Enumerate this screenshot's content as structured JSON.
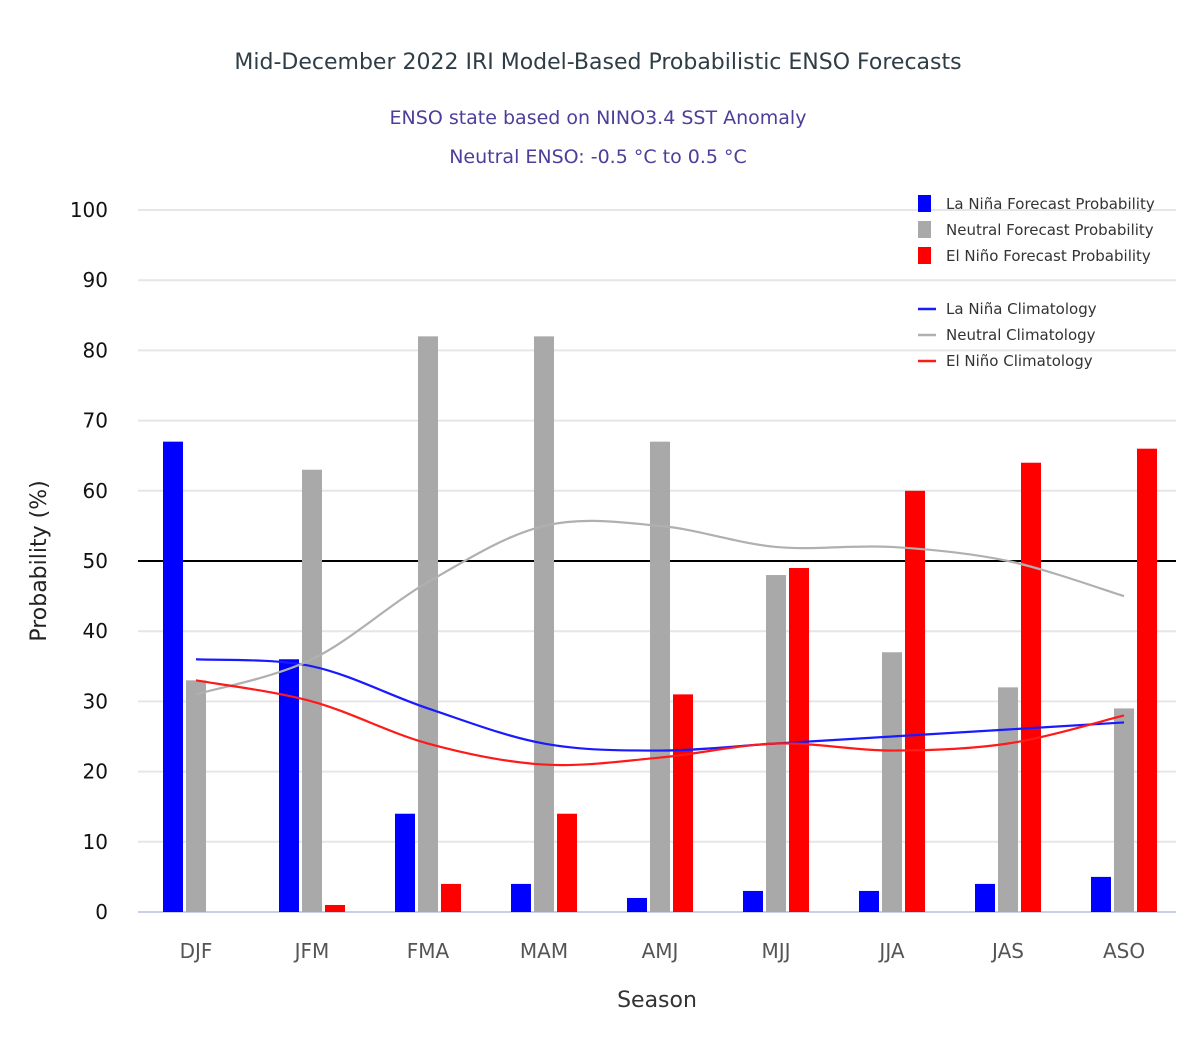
{
  "chart_data": {
    "type": "bar",
    "title": "Mid-December 2022 IRI Model-Based Probabilistic ENSO Forecasts",
    "subtitle_lines": [
      "ENSO state based on NINO3.4 SST Anomaly",
      "Neutral ENSO: -0.5 °C to 0.5 °C"
    ],
    "xlabel": "Season",
    "ylabel": "Probability (%)",
    "ylim": [
      0,
      100
    ],
    "yticks": [
      0,
      10,
      20,
      30,
      40,
      50,
      60,
      70,
      80,
      90,
      100
    ],
    "grid": true,
    "reference_line": 50,
    "legend_position": "top-right",
    "categories": [
      "DJF",
      "JFM",
      "FMA",
      "MAM",
      "AMJ",
      "MJJ",
      "JJA",
      "JAS",
      "ASO"
    ],
    "series": [
      {
        "name": "La Niña Forecast Probability",
        "kind": "bar",
        "color": "#0000ff",
        "values": [
          67,
          36,
          14,
          4,
          2,
          3,
          3,
          4,
          5
        ]
      },
      {
        "name": "Neutral Forecast Probability",
        "kind": "bar",
        "color": "#a9a9a9",
        "values": [
          33,
          63,
          82,
          82,
          67,
          48,
          37,
          32,
          29
        ]
      },
      {
        "name": "El Niño Forecast Probability",
        "kind": "bar",
        "color": "#ff0000",
        "values": [
          0,
          1,
          4,
          14,
          31,
          49,
          60,
          64,
          66
        ]
      },
      {
        "name": "La Niña Climatology",
        "kind": "line",
        "color": "#1a1aff",
        "values": [
          36,
          35,
          29,
          24,
          23,
          24,
          25,
          26,
          27
        ]
      },
      {
        "name": "Neutral Climatology",
        "kind": "line",
        "color": "#b0b0b0",
        "values": [
          31,
          36,
          47,
          55,
          55,
          52,
          52,
          50,
          45
        ]
      },
      {
        "name": "El Niño Climatology",
        "kind": "line",
        "color": "#ff1a1a",
        "values": [
          33,
          30,
          24,
          21,
          22,
          24,
          23,
          24,
          28
        ]
      }
    ]
  }
}
